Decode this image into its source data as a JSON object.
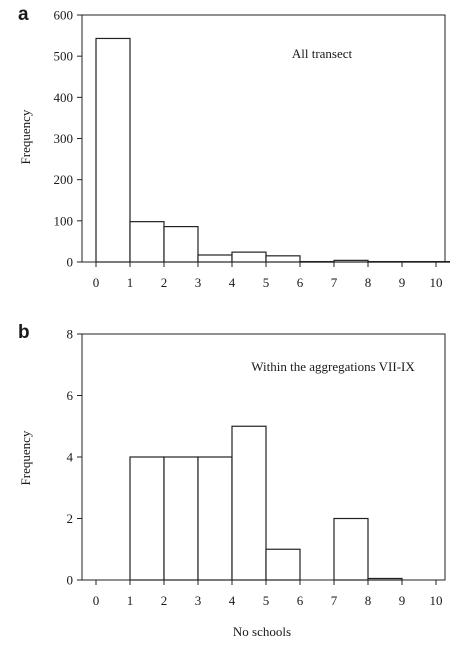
{
  "chart_data": [
    {
      "type": "bar",
      "panel": "a",
      "annotation": "All transect",
      "ylabel": "Frequency",
      "xlabel": "",
      "x_ticks": [
        "0",
        "1",
        "2",
        "3",
        "4",
        "5",
        "6",
        "7",
        "8",
        "9",
        "10"
      ],
      "ylim": [
        0,
        600
      ],
      "y_ticks": [
        0,
        100,
        200,
        300,
        400,
        500,
        600
      ],
      "bars": [
        {
          "x": 0,
          "value": 543
        },
        {
          "x": 1,
          "value": 98
        },
        {
          "x": 2,
          "value": 86
        },
        {
          "x": 3,
          "value": 17
        },
        {
          "x": 4,
          "value": 24
        },
        {
          "x": 5,
          "value": 15
        },
        {
          "x": 6,
          "value": 1
        },
        {
          "x": 7,
          "value": 4
        },
        {
          "x": 8,
          "value": 1
        },
        {
          "x": 9,
          "value": 1
        },
        {
          "x": 10,
          "value": 1
        }
      ]
    },
    {
      "type": "bar",
      "panel": "b",
      "annotation": "Within the aggregations VII-IX",
      "ylabel": "Frequency",
      "xlabel": "No schools",
      "x_ticks": [
        "0",
        "1",
        "2",
        "3",
        "4",
        "5",
        "6",
        "7",
        "8",
        "9",
        "10"
      ],
      "ylim": [
        0,
        8
      ],
      "y_ticks": [
        0,
        2,
        4,
        6,
        8
      ],
      "bars": [
        {
          "x": 1,
          "value": 4
        },
        {
          "x": 2,
          "value": 4
        },
        {
          "x": 3,
          "value": 4
        },
        {
          "x": 4,
          "value": 5
        },
        {
          "x": 5,
          "value": 1
        },
        {
          "x": 7,
          "value": 2
        },
        {
          "x": 8,
          "value": 0.05
        }
      ]
    }
  ]
}
